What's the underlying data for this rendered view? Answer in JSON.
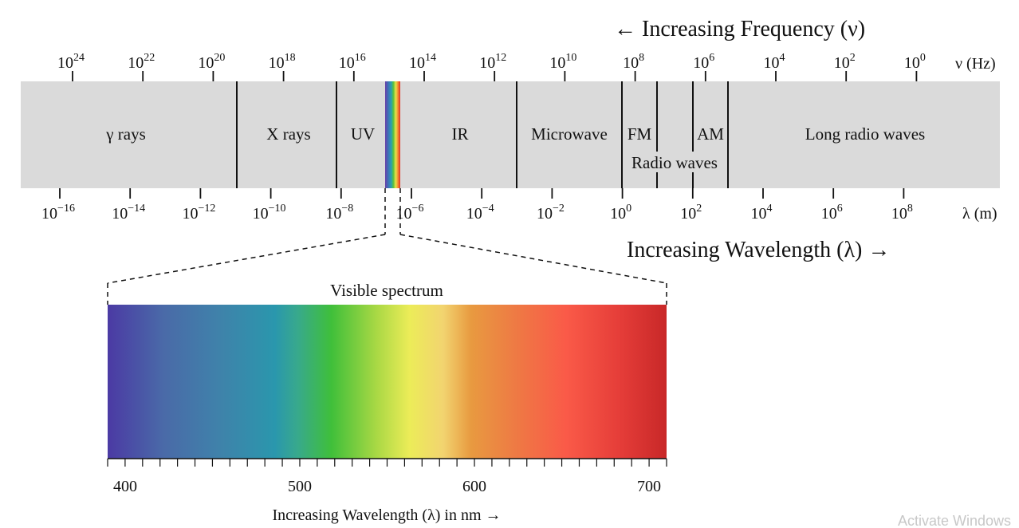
{
  "frequency_axis": {
    "title": "← Increasing Frequency (ν)",
    "unit_label": "ν (Hz)",
    "exponents": [
      "24",
      "22",
      "20",
      "18",
      "16",
      "14",
      "12",
      "10",
      "8",
      "6",
      "4",
      "2",
      "0"
    ]
  },
  "wavelength_axis": {
    "title": "Increasing Wavelength (λ) →",
    "unit_label": "λ (m)",
    "exponents": [
      "−16",
      "−14",
      "−12",
      "−10",
      "−8",
      "−6",
      "−4",
      "−2",
      "0",
      "2",
      "4",
      "6",
      "8"
    ]
  },
  "bands": {
    "gamma": "γ rays",
    "xray": "X rays",
    "uv": "UV",
    "ir": "IR",
    "microwave": "Microwave",
    "fm": "FM",
    "am": "AM",
    "radio": "Radio waves",
    "long_radio": "Long radio waves"
  },
  "visible": {
    "title": "Visible spectrum",
    "ticks": [
      "400",
      "500",
      "600",
      "700"
    ],
    "axis_label": "Increasing Wavelength (λ) in nm →"
  },
  "watermark": "Activate Windows",
  "colors": {
    "band_bg": "#dadada",
    "stroke": "#111111"
  }
}
